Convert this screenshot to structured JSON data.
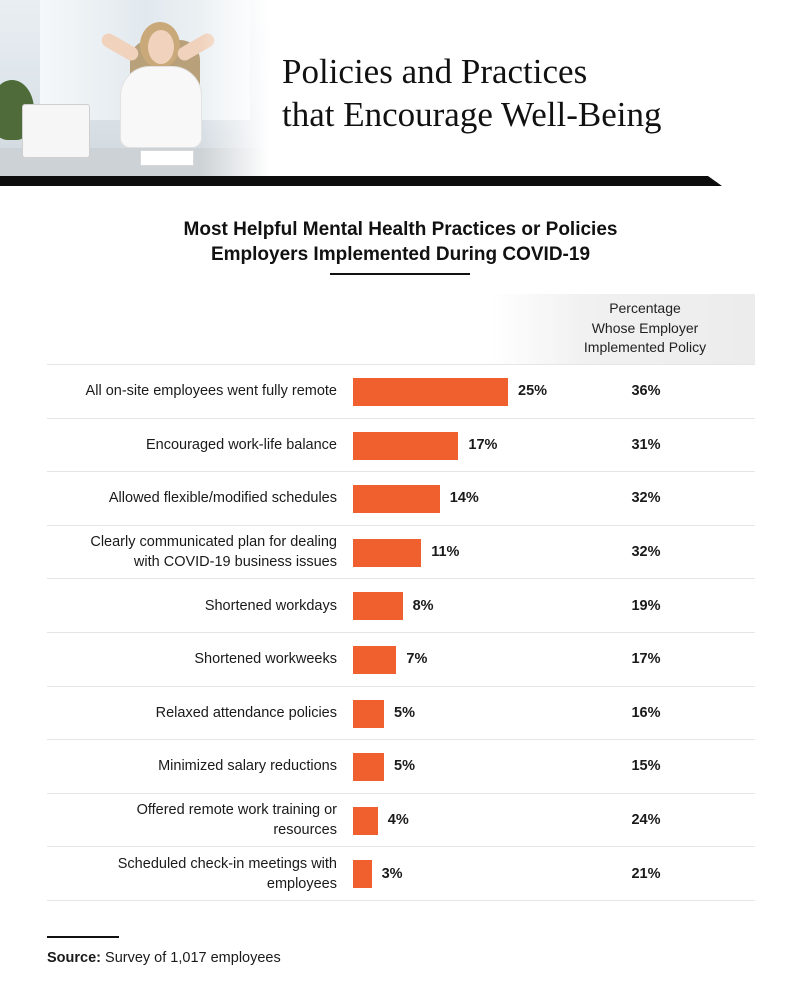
{
  "header": {
    "title_line1": "Policies and Practices",
    "title_line2": "that Encourage Well-Being"
  },
  "chart_data": {
    "type": "bar",
    "orientation": "horizontal",
    "title_line1": "Most Helpful Mental Health Practices or Policies",
    "title_line2": "Employers Implemented During COVID-19",
    "column_header": [
      "Percentage",
      "Whose Employer",
      "Implemented Policy"
    ],
    "categories": [
      [
        "All on-site employees went fully remote"
      ],
      [
        "Encouraged work-life balance"
      ],
      [
        "Allowed flexible/modified schedules"
      ],
      [
        "Clearly communicated plan for dealing",
        "with COVID-19 business issues"
      ],
      [
        "Shortened workdays"
      ],
      [
        "Shortened workweeks"
      ],
      [
        "Relaxed attendance policies"
      ],
      [
        "Minimized salary reductions"
      ],
      [
        "Offered remote work training or",
        "resources"
      ],
      [
        "Scheduled check-in meetings with",
        "employees"
      ]
    ],
    "series": [
      {
        "values": [
          25,
          17,
          14,
          11,
          8,
          7,
          5,
          5,
          4,
          3
        ],
        "labels": [
          "25%",
          "17%",
          "14%",
          "11%",
          "8%",
          "7%",
          "5%",
          "5%",
          "4%",
          "3%"
        ],
        "color": "#f0602f"
      },
      {
        "name": "Percentage Whose Employer Implemented Policy",
        "values": [
          36,
          31,
          32,
          32,
          19,
          17,
          16,
          15,
          24,
          21
        ],
        "labels": [
          "36%",
          "31%",
          "32%",
          "32%",
          "19%",
          "17%",
          "16%",
          "15%",
          "24%",
          "21%"
        ]
      }
    ],
    "value_unit": "%",
    "legend": "none",
    "grid": false
  },
  "source": {
    "label": "Source:",
    "text": " Survey of 1,017 employees"
  },
  "colors": {
    "bar": "#f0602f",
    "band": "#0d0d0d",
    "text": "#1a1a1a"
  },
  "photo": {
    "icon": "woman-relaxing-at-desk-photo"
  }
}
